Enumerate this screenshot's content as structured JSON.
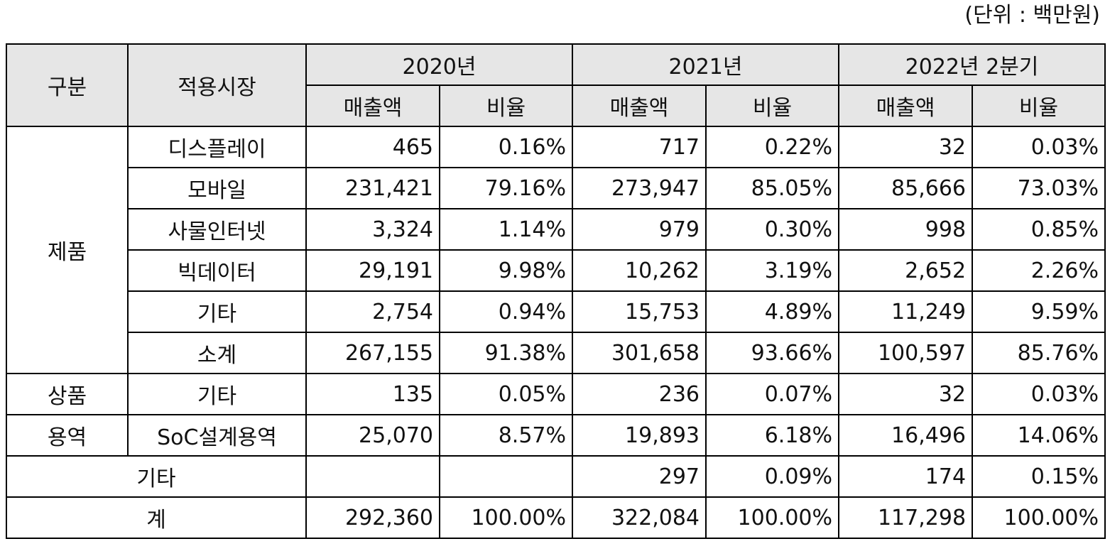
{
  "unit_label": "(단위 : 백만원)",
  "header": {
    "col_category": "구분",
    "col_market": "적용시장",
    "periods": [
      "2020년",
      "2021년",
      "2022년 2분기"
    ],
    "sub_sales": "매출액",
    "sub_ratio": "비율"
  },
  "groups": {
    "product": "제품",
    "goods": "상품",
    "service": "용역"
  },
  "rows": [
    {
      "market": "디스플레이",
      "v": [
        "465",
        "0.16%",
        "717",
        "0.22%",
        "32",
        "0.03%"
      ]
    },
    {
      "market": "모바일",
      "v": [
        "231,421",
        "79.16%",
        "273,947",
        "85.05%",
        "85,666",
        "73.03%"
      ]
    },
    {
      "market": "사물인터넷",
      "v": [
        "3,324",
        "1.14%",
        "979",
        "0.30%",
        "998",
        "0.85%"
      ]
    },
    {
      "market": "빅데이터",
      "v": [
        "29,191",
        "9.98%",
        "10,262",
        "3.19%",
        "2,652",
        "2.26%"
      ]
    },
    {
      "market": "기타",
      "v": [
        "2,754",
        "0.94%",
        "15,753",
        "4.89%",
        "11,249",
        "9.59%"
      ]
    },
    {
      "market": "소계",
      "v": [
        "267,155",
        "91.38%",
        "301,658",
        "93.66%",
        "100,597",
        "85.76%"
      ]
    },
    {
      "market": "기타",
      "v": [
        "135",
        "0.05%",
        "236",
        "0.07%",
        "32",
        "0.03%"
      ]
    },
    {
      "market": "SoC설계용역",
      "v": [
        "25,070",
        "8.57%",
        "19,893",
        "6.18%",
        "16,496",
        "14.06%"
      ]
    },
    {
      "market": "기타",
      "v": [
        "",
        "",
        "297",
        "0.09%",
        "174",
        "0.15%"
      ]
    },
    {
      "market": "계",
      "v": [
        "292,360",
        "100.00%",
        "322,084",
        "100.00%",
        "117,298",
        "100.00%"
      ]
    }
  ]
}
